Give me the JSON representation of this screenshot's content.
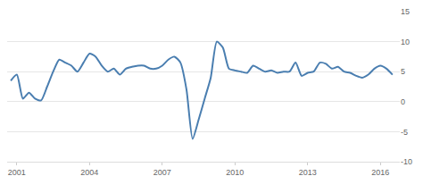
{
  "chart_data": {
    "type": "line",
    "x": [
      2000.75,
      2001.0,
      2001.25,
      2001.5,
      2001.75,
      2002.0,
      2002.25,
      2002.5,
      2002.75,
      2003.0,
      2003.25,
      2003.5,
      2003.75,
      2004.0,
      2004.25,
      2004.5,
      2004.75,
      2005.0,
      2005.25,
      2005.5,
      2005.75,
      2006.0,
      2006.25,
      2006.5,
      2006.75,
      2007.0,
      2007.25,
      2007.5,
      2007.75,
      2008.0,
      2008.25,
      2008.5,
      2008.75,
      2009.0,
      2009.25,
      2009.5,
      2009.75,
      2010.0,
      2010.25,
      2010.5,
      2010.75,
      2011.0,
      2011.25,
      2011.5,
      2011.75,
      2012.0,
      2012.25,
      2012.5,
      2012.75,
      2013.0,
      2013.25,
      2013.5,
      2013.75,
      2014.0,
      2014.25,
      2014.5,
      2014.75,
      2015.0,
      2015.25,
      2015.5,
      2015.75,
      2016.0,
      2016.25,
      2016.5
    ],
    "values": [
      3.5,
      4.5,
      0.5,
      1.5,
      0.5,
      0.2,
      2.5,
      5.0,
      7.0,
      6.5,
      6.0,
      5.0,
      6.5,
      8.0,
      7.5,
      6.0,
      5.0,
      5.5,
      4.5,
      5.5,
      5.8,
      6.0,
      6.0,
      5.5,
      5.5,
      6.0,
      7.0,
      7.5,
      6.5,
      2.0,
      -6.2,
      -3.0,
      0.5,
      4.0,
      10.0,
      9.0,
      5.5,
      5.2,
      5.0,
      4.8,
      6.0,
      5.5,
      5.0,
      5.2,
      4.8,
      5.0,
      5.0,
      6.5,
      4.3,
      4.8,
      5.0,
      6.5,
      6.3,
      5.5,
      5.8,
      5.0,
      4.8,
      4.3,
      4.0,
      4.5,
      5.5,
      6.0,
      5.5,
      4.5
    ],
    "color": "#4a7eb0",
    "xlim": [
      2000.6,
      2016.8
    ],
    "xticks": [
      2001,
      2004,
      2007,
      2010,
      2013,
      2016
    ],
    "ylim": [
      -10,
      15
    ],
    "yticks": [
      -10,
      -5,
      0,
      5,
      10,
      15
    ],
    "grid": true
  }
}
